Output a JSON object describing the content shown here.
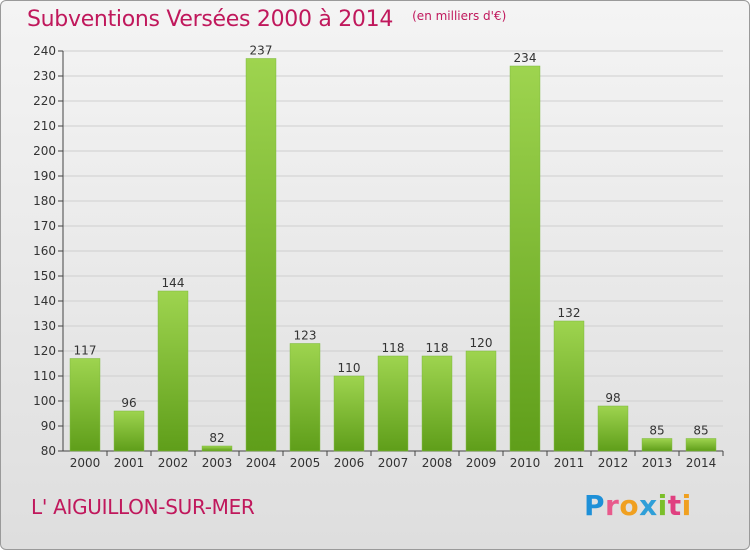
{
  "header": {
    "title": "Subventions Versées 2000 à 2014",
    "unit": "(en milliers d'€)"
  },
  "footer": {
    "place": "L' AIGUILLON-SUR-MER",
    "brand_letters": [
      "P",
      "r",
      "o",
      "x",
      "i",
      "t",
      "i"
    ],
    "brand_colors": [
      "#1e90d8",
      "#e85a8c",
      "#f0a020",
      "#2f9fd8",
      "#7bbf2a",
      "#e04080",
      "#f0a020"
    ]
  },
  "colors": {
    "bar_top": "#9ed44f",
    "bar_bottom": "#5f9e1a",
    "grid": "#cfcfcf",
    "axis": "#444444",
    "title": "#c0185c"
  },
  "chart_data": {
    "type": "bar",
    "title": "Subventions Versées 2000 à 2014",
    "unit": "(en milliers d'€)",
    "categories": [
      "2000",
      "2001",
      "2002",
      "2003",
      "2004",
      "2005",
      "2006",
      "2007",
      "2008",
      "2009",
      "2010",
      "2011",
      "2012",
      "2013",
      "2014"
    ],
    "values": [
      117,
      96,
      144,
      82,
      237,
      123,
      110,
      118,
      118,
      120,
      234,
      132,
      98,
      85,
      85
    ],
    "ylim": [
      80,
      240
    ],
    "yticks": [
      80,
      90,
      100,
      110,
      120,
      130,
      140,
      150,
      160,
      170,
      180,
      190,
      200,
      210,
      220,
      230,
      240
    ],
    "grid": true,
    "legend": "none"
  }
}
